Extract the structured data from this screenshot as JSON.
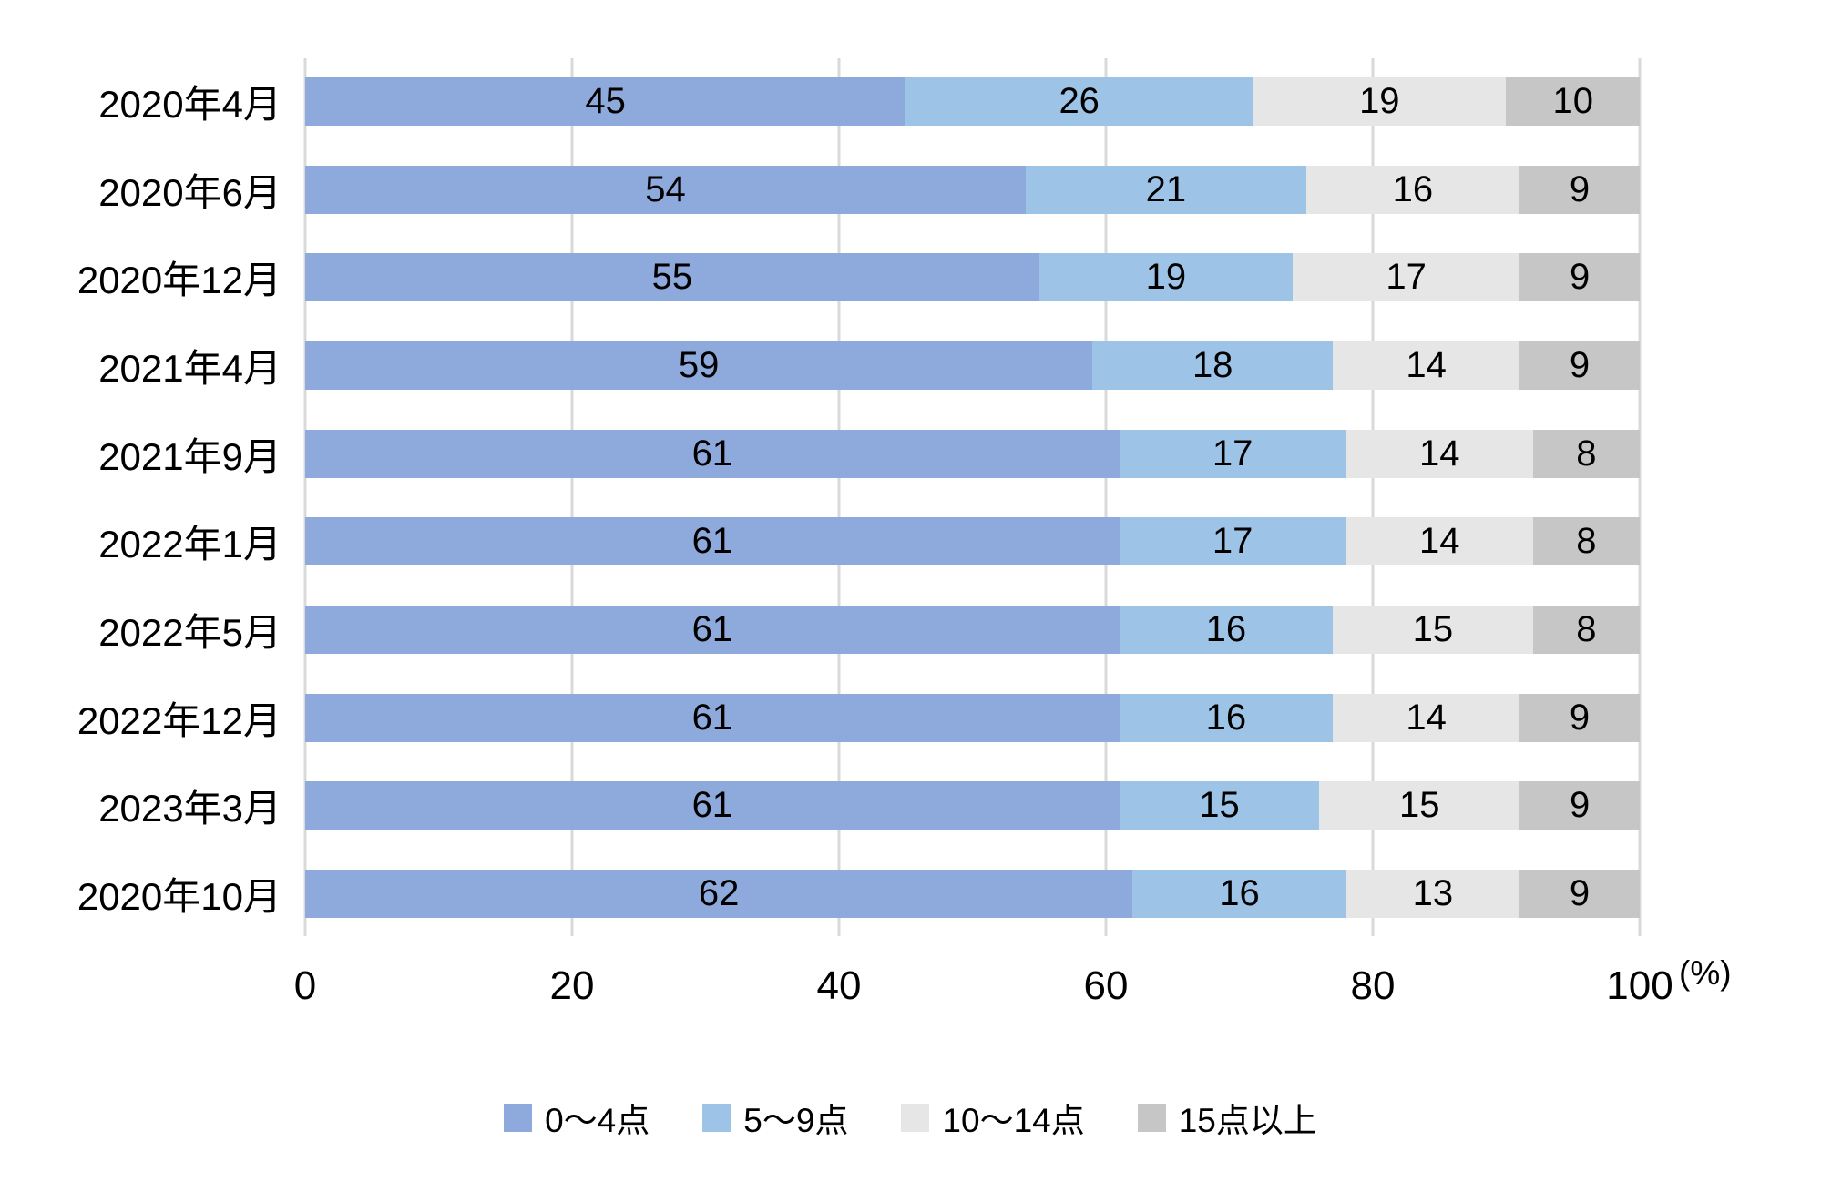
{
  "chart_data": {
    "type": "bar",
    "orientation": "horizontal",
    "stacked": true,
    "title": "",
    "xlabel": "(%)",
    "ylabel": "",
    "xlim": [
      0,
      100
    ],
    "x_ticks": [
      0,
      20,
      40,
      60,
      80,
      100
    ],
    "grid": true,
    "value_labels": true,
    "legend_position": "bottom",
    "categories": [
      "2020年4月",
      "2020年6月",
      "2020年12月",
      "2021年4月",
      "2021年9月",
      "2022年1月",
      "2022年5月",
      "2022年12月",
      "2023年3月",
      "2020年10月"
    ],
    "series": [
      {
        "name": "0〜4点",
        "color": "#8EA9DB",
        "values": [
          45,
          54,
          55,
          59,
          61,
          61,
          61,
          61,
          61,
          62
        ]
      },
      {
        "name": "5〜9点",
        "color": "#9DC3E6",
        "values": [
          26,
          21,
          19,
          18,
          17,
          17,
          16,
          16,
          15,
          16
        ]
      },
      {
        "name": "10〜14点",
        "color": "#E7E6E6",
        "values": [
          19,
          16,
          17,
          14,
          14,
          14,
          15,
          14,
          15,
          13
        ]
      },
      {
        "name": "15点以上",
        "color": "#C6C6C6",
        "values": [
          10,
          9,
          9,
          9,
          8,
          8,
          8,
          9,
          9,
          9
        ]
      }
    ],
    "colors": {
      "gridline": "#d9d9d9",
      "text": "#000000",
      "background": "#ffffff"
    }
  }
}
